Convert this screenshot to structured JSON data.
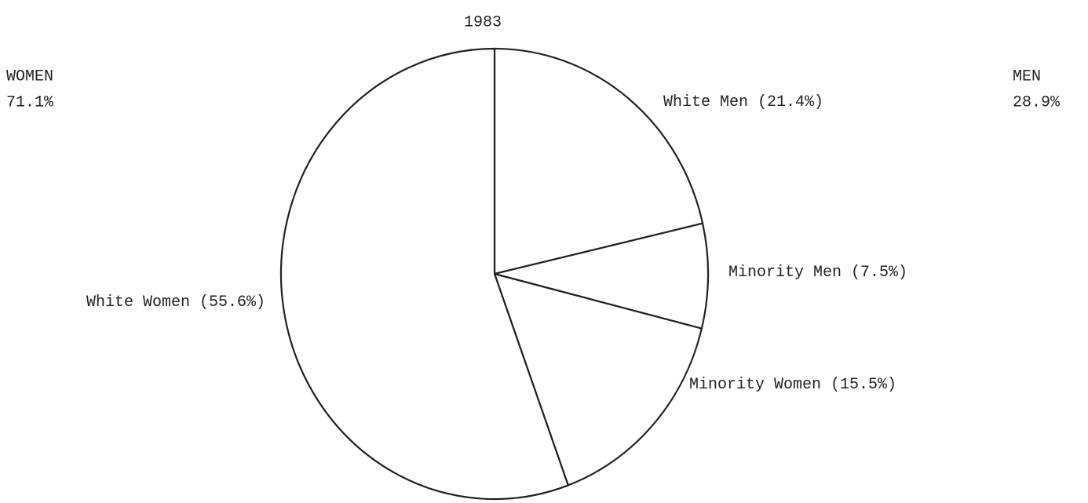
{
  "chart_data": {
    "type": "pie",
    "title": "1983",
    "categories": [
      "White Men",
      "Minority Men",
      "Minority Women",
      "White Women"
    ],
    "values": [
      21.4,
      7.5,
      15.5,
      55.6
    ],
    "value_labels": [
      "(21.4%)",
      "(7.5%)",
      "(15.5%)",
      "(55.6%)"
    ],
    "groups": [
      {
        "name": "WOMEN",
        "label": "71.1%"
      },
      {
        "name": "MEN",
        "label": "28.9%"
      }
    ],
    "color": "#ffffff"
  }
}
